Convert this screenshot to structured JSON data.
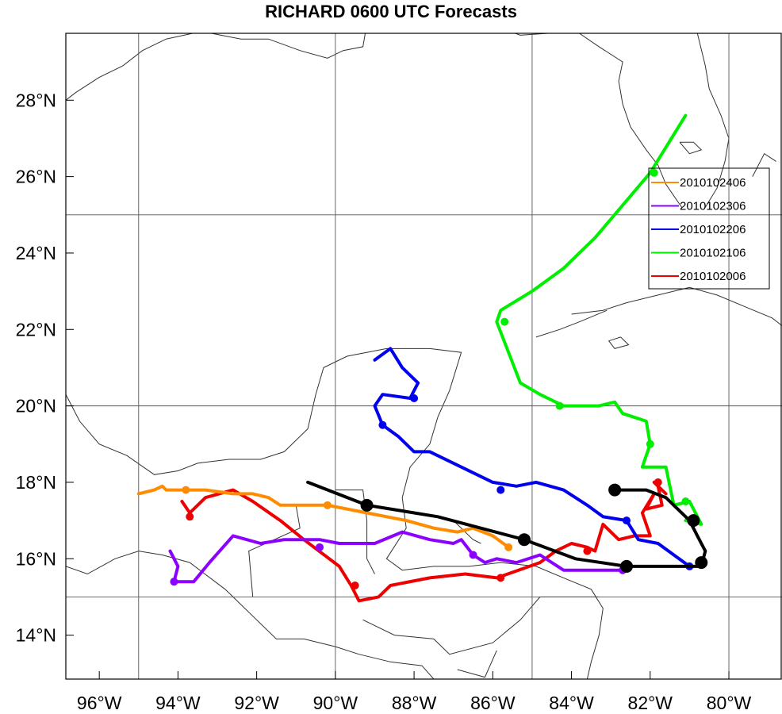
{
  "title": "RICHARD 0600 UTC Forecasts",
  "map": {
    "lon_range": [
      -96.85,
      -78.65
    ],
    "lat_range": [
      12.85,
      29.75
    ],
    "lon_ticks": [
      {
        "value": -96,
        "label": "96°W"
      },
      {
        "value": -94,
        "label": "94°W"
      },
      {
        "value": -92,
        "label": "92°W"
      },
      {
        "value": -90,
        "label": "90°W"
      },
      {
        "value": -88,
        "label": "88°W"
      },
      {
        "value": -86,
        "label": "86°W"
      },
      {
        "value": -84,
        "label": "84°W"
      },
      {
        "value": -82,
        "label": "82°W"
      },
      {
        "value": -80,
        "label": "80°W"
      }
    ],
    "lat_ticks": [
      {
        "value": 14,
        "label": "14°N"
      },
      {
        "value": 16,
        "label": "16°N"
      },
      {
        "value": 18,
        "label": "18°N"
      },
      {
        "value": 20,
        "label": "20°N"
      },
      {
        "value": 22,
        "label": "22°N"
      },
      {
        "value": 24,
        "label": "24°N"
      },
      {
        "value": 26,
        "label": "26°N"
      },
      {
        "value": 28,
        "label": "28°N"
      }
    ],
    "grid": {
      "lons": [
        -95,
        -90,
        -85,
        -80
      ],
      "lats": [
        15,
        20,
        25
      ]
    },
    "grid_color": "#555555",
    "coast_color": "#333333"
  },
  "legend": {
    "position": "right",
    "entries": [
      {
        "label": "2010102406",
        "color": "#ff8c00"
      },
      {
        "label": "2010102306",
        "color": "#8b00ff"
      },
      {
        "label": "2010102206",
        "color": "#0000ee"
      },
      {
        "label": "2010102106",
        "color": "#00ee00"
      },
      {
        "label": "2010102006",
        "color": "#ee0000"
      }
    ]
  },
  "chart_data": {
    "type": "line",
    "title": "RICHARD 0600 UTC Forecasts",
    "xlabel": "",
    "ylabel": "",
    "xlim": [
      -96.85,
      -78.65
    ],
    "ylim": [
      12.85,
      29.75
    ],
    "series": [
      {
        "name": "2010102406",
        "color": "#ff8c00",
        "points": [
          [
            -95.0,
            17.7
          ],
          [
            -94.6,
            17.8
          ],
          [
            -94.4,
            17.9
          ],
          [
            -94.3,
            17.8
          ],
          [
            -93.8,
            17.8
          ],
          [
            -93.3,
            17.8
          ],
          [
            -92.6,
            17.7
          ],
          [
            -92.1,
            17.7
          ],
          [
            -91.7,
            17.6
          ],
          [
            -91.4,
            17.4
          ],
          [
            -90.7,
            17.4
          ],
          [
            -90.2,
            17.4
          ],
          [
            -89.2,
            17.2
          ],
          [
            -88.2,
            17.0
          ],
          [
            -87.5,
            16.8
          ],
          [
            -86.9,
            16.7
          ],
          [
            -86.5,
            16.8
          ],
          [
            -86.0,
            16.6
          ],
          [
            -85.6,
            16.3
          ]
        ],
        "markers": [
          [
            -93.8,
            17.8
          ],
          [
            -90.2,
            17.4
          ],
          [
            -85.6,
            16.3
          ]
        ]
      },
      {
        "name": "2010102306",
        "color": "#8b00ff",
        "points": [
          [
            -94.2,
            16.2
          ],
          [
            -94.0,
            15.8
          ],
          [
            -94.1,
            15.4
          ],
          [
            -93.6,
            15.4
          ],
          [
            -93.2,
            15.9
          ],
          [
            -92.6,
            16.6
          ],
          [
            -91.9,
            16.4
          ],
          [
            -91.3,
            16.5
          ],
          [
            -90.4,
            16.5
          ],
          [
            -89.9,
            16.4
          ],
          [
            -89.0,
            16.4
          ],
          [
            -88.3,
            16.7
          ],
          [
            -87.6,
            16.5
          ],
          [
            -87.0,
            16.4
          ],
          [
            -86.8,
            16.5
          ],
          [
            -86.5,
            16.1
          ],
          [
            -86.2,
            15.9
          ],
          [
            -85.9,
            16.0
          ],
          [
            -85.4,
            15.9
          ],
          [
            -84.8,
            16.1
          ],
          [
            -84.2,
            15.7
          ],
          [
            -82.7,
            15.7
          ]
        ],
        "markers": [
          [
            -94.1,
            15.4
          ],
          [
            -90.4,
            16.3
          ],
          [
            -86.5,
            16.1
          ],
          [
            -82.7,
            15.7
          ]
        ]
      },
      {
        "name": "2010102206",
        "color": "#0000ee",
        "points": [
          [
            -89.0,
            21.2
          ],
          [
            -88.6,
            21.5
          ],
          [
            -88.3,
            21.0
          ],
          [
            -87.9,
            20.6
          ],
          [
            -88.1,
            20.2
          ],
          [
            -88.8,
            20.3
          ],
          [
            -89.0,
            20.0
          ],
          [
            -88.8,
            19.5
          ],
          [
            -88.4,
            19.2
          ],
          [
            -88.0,
            18.8
          ],
          [
            -87.6,
            18.8
          ],
          [
            -86.8,
            18.4
          ],
          [
            -86.0,
            18.0
          ],
          [
            -85.4,
            17.9
          ],
          [
            -84.9,
            18.0
          ],
          [
            -84.2,
            17.8
          ],
          [
            -83.6,
            17.4
          ],
          [
            -83.2,
            17.1
          ],
          [
            -82.6,
            17.0
          ],
          [
            -82.3,
            16.5
          ],
          [
            -81.8,
            16.4
          ],
          [
            -81.4,
            16.1
          ],
          [
            -81.0,
            15.8
          ]
        ],
        "markers": [
          [
            -88.0,
            20.2
          ],
          [
            -88.8,
            19.5
          ],
          [
            -85.8,
            17.8
          ],
          [
            -82.6,
            17.0
          ],
          [
            -81.0,
            15.8
          ]
        ]
      },
      {
        "name": "2010102106",
        "color": "#00ee00",
        "points": [
          [
            -81.1,
            27.6
          ],
          [
            -82.0,
            26.1
          ],
          [
            -83.4,
            24.4
          ],
          [
            -84.2,
            23.6
          ],
          [
            -85.0,
            23.0
          ],
          [
            -85.8,
            22.5
          ],
          [
            -85.9,
            22.2
          ],
          [
            -85.6,
            21.4
          ],
          [
            -85.3,
            20.6
          ],
          [
            -84.8,
            20.3
          ],
          [
            -84.2,
            20.0
          ],
          [
            -83.3,
            20.0
          ],
          [
            -82.9,
            20.1
          ],
          [
            -82.7,
            19.8
          ],
          [
            -82.1,
            19.6
          ],
          [
            -82.0,
            19.0
          ],
          [
            -82.2,
            18.4
          ],
          [
            -81.6,
            18.4
          ],
          [
            -81.4,
            17.4
          ],
          [
            -81.0,
            17.5
          ],
          [
            -80.7,
            16.9
          ],
          [
            -81.1,
            17.0
          ]
        ],
        "markers": [
          [
            -81.9,
            26.1
          ],
          [
            -85.7,
            22.2
          ],
          [
            -84.3,
            20.0
          ],
          [
            -82.0,
            19.0
          ],
          [
            -81.1,
            17.5
          ]
        ]
      },
      {
        "name": "2010102006",
        "color": "#ee0000",
        "points": [
          [
            -93.9,
            17.5
          ],
          [
            -93.7,
            17.2
          ],
          [
            -93.3,
            17.6
          ],
          [
            -92.6,
            17.8
          ],
          [
            -92.1,
            17.5
          ],
          [
            -91.4,
            17.0
          ],
          [
            -90.8,
            16.5
          ],
          [
            -89.9,
            15.8
          ],
          [
            -89.6,
            15.3
          ],
          [
            -89.4,
            14.9
          ],
          [
            -88.9,
            15.0
          ],
          [
            -88.6,
            15.3
          ],
          [
            -87.6,
            15.5
          ],
          [
            -86.7,
            15.6
          ],
          [
            -85.9,
            15.5
          ],
          [
            -84.8,
            15.9
          ],
          [
            -84.4,
            16.2
          ],
          [
            -84.0,
            16.4
          ],
          [
            -83.6,
            16.3
          ],
          [
            -83.4,
            16.2
          ],
          [
            -83.2,
            16.9
          ],
          [
            -82.8,
            16.5
          ],
          [
            -82.4,
            16.6
          ],
          [
            -82.0,
            16.6
          ],
          [
            -82.2,
            17.2
          ],
          [
            -81.9,
            17.7
          ],
          [
            -82.1,
            17.3
          ],
          [
            -81.7,
            17.4
          ],
          [
            -81.8,
            17.9
          ],
          [
            -81.9,
            18.0
          ],
          [
            -81.6,
            17.7
          ]
        ],
        "markers": [
          [
            -93.7,
            17.1
          ],
          [
            -89.5,
            15.3
          ],
          [
            -85.8,
            15.5
          ],
          [
            -83.6,
            16.2
          ],
          [
            -81.8,
            18.0
          ]
        ]
      },
      {
        "name": "",
        "color": "#000000",
        "points": [
          [
            -90.7,
            18.0
          ],
          [
            -89.2,
            17.4
          ],
          [
            -87.4,
            17.1
          ],
          [
            -85.2,
            16.5
          ],
          [
            -83.9,
            16.0
          ],
          [
            -82.6,
            15.8
          ],
          [
            -80.7,
            15.8
          ],
          [
            -80.6,
            16.2
          ],
          [
            -80.8,
            16.6
          ],
          [
            -81.0,
            17.0
          ],
          [
            -81.6,
            17.6
          ],
          [
            -82.1,
            17.8
          ],
          [
            -82.9,
            17.8
          ]
        ],
        "markers": [
          [
            -89.2,
            17.4
          ],
          [
            -85.2,
            16.5
          ],
          [
            -82.6,
            15.8
          ],
          [
            -80.7,
            15.9
          ],
          [
            -80.9,
            17.0
          ],
          [
            -82.9,
            17.8
          ]
        ]
      }
    ]
  },
  "coastlines": [
    [
      [
        -96.85,
        20.3
      ],
      [
        -96.5,
        19.6
      ],
      [
        -96.0,
        19.0
      ],
      [
        -95.3,
        18.7
      ],
      [
        -94.6,
        18.2
      ],
      [
        -94.0,
        18.3
      ],
      [
        -93.5,
        18.5
      ],
      [
        -92.7,
        18.6
      ],
      [
        -91.9,
        18.6
      ],
      [
        -91.3,
        18.8
      ],
      [
        -90.7,
        19.4
      ],
      [
        -90.5,
        20.3
      ],
      [
        -90.3,
        21.0
      ],
      [
        -89.7,
        21.3
      ],
      [
        -88.7,
        21.5
      ],
      [
        -87.6,
        21.5
      ],
      [
        -86.8,
        21.4
      ],
      [
        -87.1,
        20.4
      ],
      [
        -87.4,
        19.7
      ],
      [
        -87.6,
        19.0
      ],
      [
        -88.1,
        18.4
      ],
      [
        -88.3,
        17.6
      ],
      [
        -88.2,
        16.8
      ],
      [
        -88.7,
        16.0
      ],
      [
        -88.3,
        15.7
      ],
      [
        -87.5,
        15.8
      ],
      [
        -86.6,
        15.8
      ],
      [
        -85.8,
        15.9
      ],
      [
        -84.9,
        15.8
      ],
      [
        -84.2,
        15.5
      ],
      [
        -83.5,
        15.2
      ],
      [
        -83.2,
        14.7
      ],
      [
        -83.3,
        14.0
      ],
      [
        -83.5,
        13.3
      ],
      [
        -83.6,
        12.85
      ]
    ],
    [
      [
        -96.85,
        15.8
      ],
      [
        -96.3,
        15.6
      ],
      [
        -95.6,
        16.0
      ],
      [
        -95.0,
        16.2
      ],
      [
        -94.4,
        16.1
      ],
      [
        -93.7,
        15.9
      ],
      [
        -92.8,
        15.2
      ],
      [
        -92.2,
        14.6
      ],
      [
        -91.5,
        13.9
      ],
      [
        -90.8,
        13.9
      ],
      [
        -90.0,
        13.7
      ],
      [
        -89.4,
        13.5
      ],
      [
        -88.6,
        13.3
      ],
      [
        -87.8,
        13.2
      ],
      [
        -87.5,
        12.85
      ]
    ],
    [
      [
        -84.0,
        22.4
      ],
      [
        -83.2,
        22.5
      ],
      [
        -82.6,
        22.7
      ],
      [
        -81.8,
        22.9
      ],
      [
        -81.0,
        23.1
      ],
      [
        -80.3,
        22.9
      ],
      [
        -79.6,
        22.6
      ],
      [
        -78.9,
        22.3
      ],
      [
        -78.65,
        22.1
      ]
    ],
    [
      [
        -84.9,
        21.8
      ],
      [
        -84.3,
        22.0
      ],
      [
        -83.8,
        22.2
      ],
      [
        -83.1,
        22.5
      ]
    ],
    [
      [
        -80.6,
        25.2
      ],
      [
        -80.3,
        25.7
      ],
      [
        -80.1,
        26.4
      ],
      [
        -80.0,
        27.0
      ],
      [
        -80.2,
        27.6
      ],
      [
        -80.5,
        28.3
      ],
      [
        -80.6,
        28.9
      ],
      [
        -80.8,
        29.75
      ]
    ],
    [
      [
        -81.2,
        25.2
      ],
      [
        -81.6,
        25.8
      ],
      [
        -81.8,
        26.3
      ],
      [
        -82.1,
        26.7
      ],
      [
        -82.5,
        27.3
      ],
      [
        -82.7,
        27.9
      ],
      [
        -82.8,
        28.5
      ],
      [
        -82.7,
        29.0
      ],
      [
        -83.3,
        29.4
      ],
      [
        -83.8,
        29.75
      ]
    ],
    [
      [
        -84.6,
        29.75
      ],
      [
        -85.3,
        29.7
      ],
      [
        -86.1,
        30.0
      ]
    ],
    [
      [
        -88.5,
        30.2
      ],
      [
        -89.2,
        30.0
      ],
      [
        -89.3,
        29.4
      ],
      [
        -89.8,
        29.3
      ],
      [
        -90.2,
        29.1
      ],
      [
        -90.9,
        29.3
      ],
      [
        -91.7,
        29.6
      ],
      [
        -92.4,
        29.6
      ],
      [
        -93.4,
        29.8
      ],
      [
        -94.3,
        29.6
      ],
      [
        -94.9,
        29.3
      ],
      [
        -95.4,
        28.9
      ],
      [
        -96.0,
        28.6
      ],
      [
        -96.6,
        28.2
      ],
      [
        -96.85,
        28.0
      ]
    ],
    [
      [
        -82.75,
        21.8
      ],
      [
        -82.55,
        21.6
      ],
      [
        -82.9,
        21.5
      ],
      [
        -83.05,
        21.7
      ],
      [
        -82.75,
        21.8
      ]
    ],
    [
      [
        -81.25,
        26.9
      ],
      [
        -80.9,
        26.9
      ],
      [
        -80.7,
        26.7
      ],
      [
        -81.0,
        26.6
      ],
      [
        -81.25,
        26.9
      ]
    ],
    [
      [
        -79.4,
        26.0
      ],
      [
        -79.1,
        26.6
      ],
      [
        -78.8,
        26.4
      ]
    ],
    [
      [
        -87.0,
        17.0
      ],
      [
        -86.5,
        16.5
      ],
      [
        -86.3,
        16.4
      ]
    ],
    [
      [
        -90.0,
        17.8
      ],
      [
        -89.3,
        17.8
      ],
      [
        -89.2,
        17.0
      ],
      [
        -89.2,
        16.0
      ],
      [
        -89.0,
        15.6
      ]
    ],
    [
      [
        -91.0,
        17.4
      ],
      [
        -90.9,
        16.8
      ],
      [
        -92.2,
        16.2
      ],
      [
        -92.1,
        15.0
      ]
    ],
    [
      [
        -89.3,
        14.4
      ],
      [
        -88.5,
        14.0
      ],
      [
        -87.5,
        13.9
      ],
      [
        -87.1,
        13.5
      ],
      [
        -86.0,
        13.8
      ],
      [
        -85.3,
        14.4
      ],
      [
        -84.8,
        15.0
      ],
      [
        -83.3,
        15.0
      ]
    ],
    [
      [
        -86.9,
        13.1
      ],
      [
        -86.2,
        12.9
      ],
      [
        -85.9,
        13.6
      ]
    ]
  ]
}
